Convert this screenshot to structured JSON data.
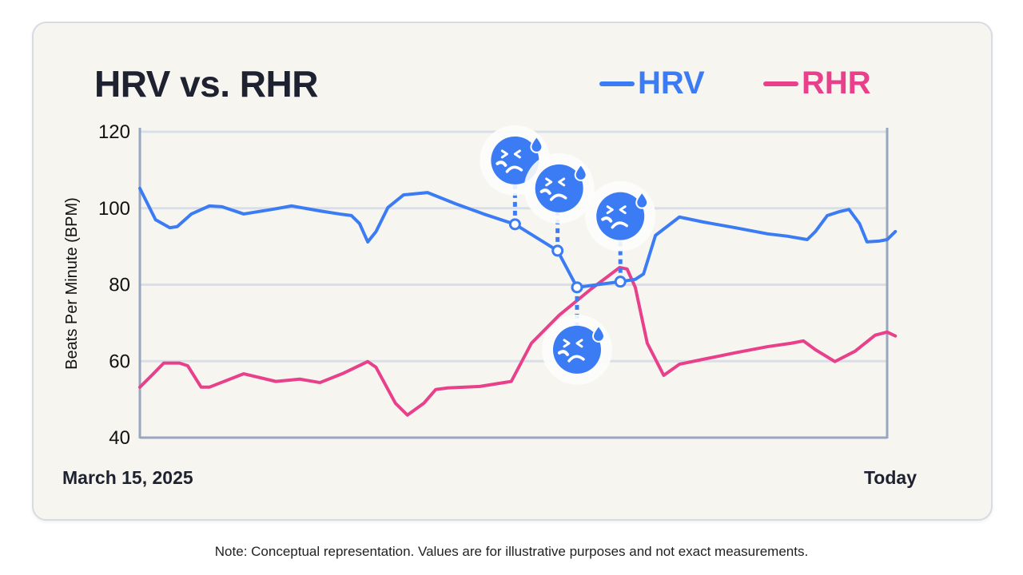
{
  "note": "Note: Conceptual representation. Values are for illustrative purposes and not exact measurements.",
  "chart_data": {
    "type": "line",
    "title": "HRV vs. RHR",
    "ylabel": "Beats Per Minute (BPM)",
    "xlabel": "",
    "ylim": [
      40,
      120
    ],
    "yticks": [
      "40",
      "60",
      "80",
      "100",
      "120"
    ],
    "xtick_labels": {
      "start": "March 15, 2025",
      "end": "Today"
    },
    "x_note": "x given as fraction of the timeline from March 15, 2025 (0) to Today (1)",
    "grid": "horizontal",
    "legend_position": "top-right",
    "series": [
      {
        "name": "HRV",
        "color": "#3b7cf4",
        "x": [
          0,
          0.021,
          0.04,
          0.05,
          0.069,
          0.093,
          0.11,
          0.139,
          0.177,
          0.203,
          0.241,
          0.267,
          0.283,
          0.294,
          0.305,
          0.316,
          0.332,
          0.353,
          0.385,
          0.422,
          0.46,
          0.502,
          0.559,
          0.585,
          0.643,
          0.663,
          0.674,
          0.69,
          0.722,
          0.754,
          0.797,
          0.84,
          0.866,
          0.893,
          0.904,
          0.92,
          0.936,
          0.949,
          0.963,
          0.973,
          0.989,
          1.0,
          1.011
        ],
        "y": [
          105.2,
          97.0,
          94.9,
          95.2,
          98.5,
          100.6,
          100.4,
          98.5,
          99.7,
          100.6,
          99.3,
          98.5,
          98.1,
          96.0,
          91.2,
          93.9,
          100.2,
          103.5,
          104.1,
          101.2,
          98.5,
          95.8,
          88.9,
          79.3,
          80.8,
          81.4,
          82.8,
          92.9,
          97.7,
          96.4,
          94.9,
          93.3,
          92.7,
          91.8,
          93.9,
          98.1,
          99.1,
          99.7,
          96.0,
          91.2,
          91.4,
          91.8,
          93.9
        ],
        "flagged_points": [
          21,
          22,
          23,
          24
        ]
      },
      {
        "name": "RHR",
        "color": "#e8408a",
        "x": [
          0,
          0.016,
          0.032,
          0.053,
          0.064,
          0.082,
          0.093,
          0.139,
          0.182,
          0.214,
          0.241,
          0.273,
          0.305,
          0.316,
          0.342,
          0.358,
          0.38,
          0.396,
          0.412,
          0.455,
          0.497,
          0.524,
          0.561,
          0.604,
          0.642,
          0.652,
          0.663,
          0.679,
          0.701,
          0.722,
          0.754,
          0.797,
          0.84,
          0.872,
          0.888,
          0.904,
          0.93,
          0.957,
          0.984,
          1.0,
          1.011
        ],
        "y": [
          53.2,
          56.3,
          59.5,
          59.5,
          58.8,
          53.2,
          53.2,
          56.7,
          54.7,
          55.3,
          54.4,
          56.9,
          59.9,
          58.4,
          49.0,
          45.9,
          49.0,
          52.6,
          53.0,
          53.4,
          54.7,
          64.7,
          72.0,
          78.9,
          84.5,
          84.1,
          79.3,
          64.7,
          56.3,
          59.2,
          60.5,
          62.2,
          63.8,
          64.7,
          65.3,
          63.0,
          59.9,
          62.6,
          66.8,
          67.6,
          66.6
        ]
      }
    ],
    "annotations": [
      {
        "icon": "anxious-sweat-face-icon",
        "count": 4
      }
    ]
  }
}
